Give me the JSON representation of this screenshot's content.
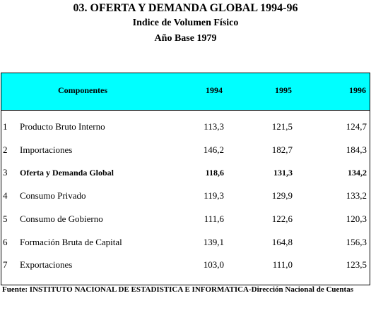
{
  "header": {
    "title": "03.  OFERTA Y DEMANDA GLOBAL 1994-96",
    "subtitle": "Indice de Volumen Físico",
    "base": "Año Base 1979"
  },
  "table": {
    "columns": [
      "Componentes",
      "1994",
      "1995",
      "1996"
    ],
    "rows": [
      [
        "1",
        "Producto Bruto Interno",
        "113,3",
        "121,5",
        "124,7"
      ],
      [
        "2",
        "Importaciones",
        "146,2",
        "182,7",
        "184,3"
      ],
      [
        "3",
        "Oferta y Demanda Global",
        "118,6",
        "131,3",
        "134,2"
      ],
      [
        "4",
        "Consumo Privado",
        "119,3",
        "129,9",
        "133,2"
      ],
      [
        "5",
        "Consumo de Gobierno",
        "111,6",
        "122,6",
        "120,3"
      ],
      [
        "6",
        "Formación Bruta de Capital",
        "139,1",
        "164,8",
        "156,3"
      ],
      [
        "7",
        "Exportaciones",
        "103,0",
        "111,0",
        "123,5"
      ]
    ]
  },
  "footer": {
    "source": "Fuente: INSTITUTO NACIONAL DE ESTADISTICA E INFORMATICA-Dirección Nacional de Cuentas"
  }
}
